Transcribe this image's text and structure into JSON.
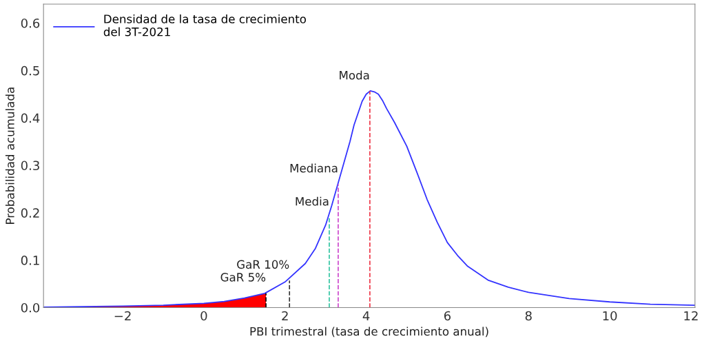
{
  "chart_data": {
    "type": "line",
    "xlabel": "PBI trimestral (tasa de crecimiento anual)",
    "ylabel": "Probabilidad acumulada",
    "xlim": [
      -3.95,
      12.1
    ],
    "xticks": [
      {
        "value": -2,
        "label": "−2"
      },
      0,
      2,
      4,
      6,
      8,
      10,
      12
    ],
    "ylim": [
      0,
      0.64
    ],
    "yticks": [
      {
        "value": 0,
        "label": "0.0"
      },
      0.1,
      0.2,
      0.3,
      0.4,
      0.5,
      0.6
    ],
    "grid": false,
    "legend": "top left",
    "series": [
      {
        "name": "Densidad de la tasa de crecimiento\ndel 3T-2021",
        "color": "#3333ff",
        "x": [
          -3.95,
          -3,
          -2,
          -1,
          0,
          0.5,
          1,
          1.5,
          2,
          2.5,
          2.75,
          3,
          3.15,
          3.3,
          3.45,
          3.6,
          3.7,
          3.8,
          3.9,
          4.0,
          4.1,
          4.2,
          4.3,
          4.4,
          4.5,
          4.7,
          5.0,
          5.25,
          5.5,
          5.75,
          6,
          6.25,
          6.5,
          7,
          7.5,
          8,
          9,
          10,
          11,
          12.1
        ],
        "values": [
          0.001,
          0.002,
          0.003,
          0.005,
          0.009,
          0.013,
          0.02,
          0.03,
          0.054,
          0.093,
          0.125,
          0.174,
          0.215,
          0.26,
          0.305,
          0.35,
          0.385,
          0.41,
          0.435,
          0.45,
          0.457,
          0.455,
          0.45,
          0.437,
          0.42,
          0.39,
          0.34,
          0.285,
          0.228,
          0.18,
          0.137,
          0.11,
          0.087,
          0.058,
          0.043,
          0.032,
          0.019,
          0.012,
          0.007,
          0.005
        ]
      },
      {
        "color": "#ff0000",
        "type": "area",
        "x": [
          -3.95,
          -3,
          -2,
          -1,
          0,
          0.5,
          1,
          1.53
        ],
        "values": [
          0.001,
          0.002,
          0.003,
          0.005,
          0.009,
          0.013,
          0.02,
          0.03
        ]
      },
      {
        "color": "#000000",
        "type": "line",
        "line_style": "dashed",
        "x": [
          1.53,
          1.53
        ],
        "values": [
          0,
          0.03
        ]
      },
      {
        "color": "#333333",
        "type": "line",
        "line_style": "dashed",
        "x": [
          2.11,
          2.11
        ],
        "values": [
          0,
          0.057
        ]
      },
      {
        "color": "#2ec4a0",
        "type": "line",
        "line_style": "dashed",
        "x": [
          3.09,
          3.09
        ],
        "values": [
          0,
          0.19
        ]
      },
      {
        "color": "#cc44cc",
        "type": "line",
        "line_style": "dashed",
        "x": [
          3.31,
          3.31
        ],
        "values": [
          0,
          0.26
        ]
      },
      {
        "color": "#ee3344",
        "type": "line",
        "line_style": "dashed",
        "x": [
          4.09,
          4.09
        ],
        "values": [
          0,
          0.456
        ]
      }
    ],
    "annotations": [
      {
        "text": "Moda",
        "x": 4.09,
        "y": 0.456
      },
      {
        "text": "Mediana",
        "x": 3.31,
        "y": 0.26
      },
      {
        "text": "Media",
        "x": 3.09,
        "y": 0.19
      },
      {
        "text": "GaR 10%",
        "x": 2.11,
        "y": 0.057
      },
      {
        "text": "GaR 5%",
        "x": 1.53,
        "y": 0.03
      }
    ]
  }
}
